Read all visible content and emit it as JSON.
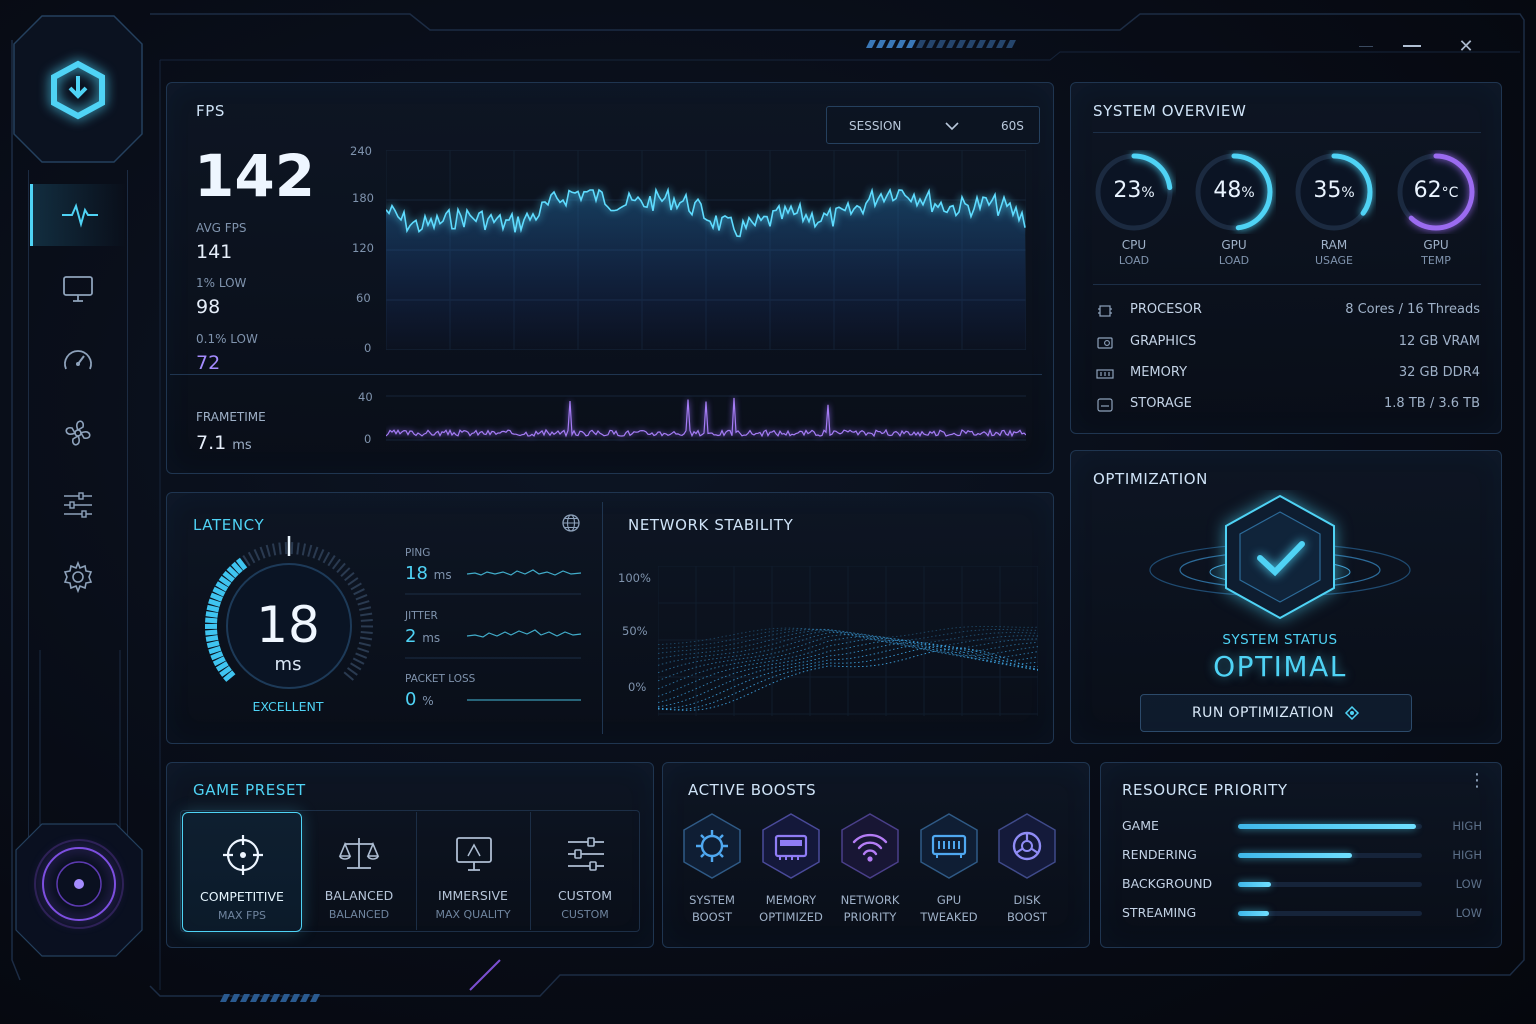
{
  "window": {
    "minimize_glyph": "—",
    "maximize_glyph": "",
    "close_glyph": "✕"
  },
  "sidebar": {
    "items": [
      {
        "icon": "activity-pulse-icon",
        "active": true
      },
      {
        "icon": "monitor-icon",
        "active": false
      },
      {
        "icon": "speedometer-icon",
        "active": false
      },
      {
        "icon": "fan-icon",
        "active": false
      },
      {
        "icon": "sliders-icon",
        "active": false
      },
      {
        "icon": "gear-icon",
        "active": false
      }
    ]
  },
  "fps": {
    "title": "FPS",
    "current": "142",
    "avg_label": "AVG FPS",
    "avg_value": "141",
    "low1_label": "1% LOW",
    "low1_value": "98",
    "low01_label": "0.1% LOW",
    "low01_value": "72",
    "range_select": "SESSION",
    "window_label": "60S",
    "y_ticks": [
      "240",
      "180",
      "120",
      "60",
      "0"
    ],
    "frametime_label": "FRAMETIME",
    "frametime_value": "7.1",
    "frametime_unit": "ms",
    "ft_ticks": [
      "40",
      "0"
    ]
  },
  "system_overview": {
    "title": "SYSTEM OVERVIEW",
    "gauges": [
      {
        "value": "23",
        "unit": "%",
        "label1": "CPU",
        "label2": "LOAD",
        "pct": 0.23,
        "color": "#4fd3f5"
      },
      {
        "value": "48",
        "unit": "%",
        "label1": "GPU",
        "label2": "LOAD",
        "pct": 0.48,
        "color": "#4fd3f5"
      },
      {
        "value": "35",
        "unit": "%",
        "label1": "RAM",
        "label2": "USAGE",
        "pct": 0.35,
        "color": "#4fd3f5"
      },
      {
        "value": "62",
        "unit": "°C",
        "label1": "GPU",
        "label2": "TEMP",
        "pct": 0.62,
        "color": "#9b6bf0"
      }
    ],
    "specs": [
      {
        "icon": "cpu-chip-icon",
        "name": "PROCESOR",
        "value": "8 Cores / 16 Threads"
      },
      {
        "icon": "graphics-card-icon",
        "name": "GRAPHICS",
        "value": "12 GB VRAM"
      },
      {
        "icon": "memory-module-icon",
        "name": "MEMORY",
        "value": "32 GB DDR4"
      },
      {
        "icon": "storage-drive-icon",
        "name": "STORAGE",
        "value": "1.8 TB / 3.6 TB"
      }
    ]
  },
  "latency": {
    "title": "LATENCY",
    "value": "18",
    "unit": "ms",
    "quality": "EXCELLENT",
    "ping_label": "PING",
    "ping_value": "18",
    "ping_unit": "ms",
    "jitter_label": "JITTER",
    "jitter_value": "2",
    "jitter_unit": "ms",
    "loss_label": "PACKET LOSS",
    "loss_value": "0",
    "loss_unit": "%"
  },
  "network": {
    "title": "NETWORK STABILITY",
    "y_ticks": [
      "100%",
      "50%",
      "0%"
    ]
  },
  "optimization": {
    "title": "OPTIMIZATION",
    "status_label": "SYSTEM STATUS",
    "status_value": "OPTIMAL",
    "run_button": "RUN OPTIMIZATION"
  },
  "presets": {
    "title": "GAME PRESET",
    "items": [
      {
        "icon": "crosshair-icon",
        "name": "COMPETITIVE",
        "sub": "MAX FPS",
        "selected": true
      },
      {
        "icon": "balance-scale-icon",
        "name": "BALANCED",
        "sub": "BALANCED",
        "selected": false
      },
      {
        "icon": "immersive-display-icon",
        "name": "IMMERSIVE",
        "sub": "MAX QUALITY",
        "selected": false
      },
      {
        "icon": "sliders-icon",
        "name": "CUSTOM",
        "sub": "CUSTOM",
        "selected": false
      }
    ]
  },
  "boosts": {
    "title": "ACTIVE BOOSTS",
    "items": [
      {
        "icon": "cpu-gear-icon",
        "l1": "SYSTEM",
        "l2": "BOOST"
      },
      {
        "icon": "memory-chip-icon",
        "l1": "MEMORY",
        "l2": "OPTIMIZED"
      },
      {
        "icon": "wifi-icon",
        "l1": "NETWORK",
        "l2": "PRIORITY"
      },
      {
        "icon": "gpu-icon",
        "l1": "GPU",
        "l2": "TWEAKED"
      },
      {
        "icon": "disk-icon",
        "l1": "DISK",
        "l2": "BOOST"
      }
    ]
  },
  "priority": {
    "title": "RESOURCE PRIORITY",
    "items": [
      {
        "name": "GAME",
        "level": "HIGH",
        "fill": 0.97
      },
      {
        "name": "RENDERING",
        "level": "HIGH",
        "fill": 0.62
      },
      {
        "name": "BACKGROUND",
        "level": "LOW",
        "fill": 0.18
      },
      {
        "name": "STREAMING",
        "level": "LOW",
        "fill": 0.17
      }
    ]
  }
}
